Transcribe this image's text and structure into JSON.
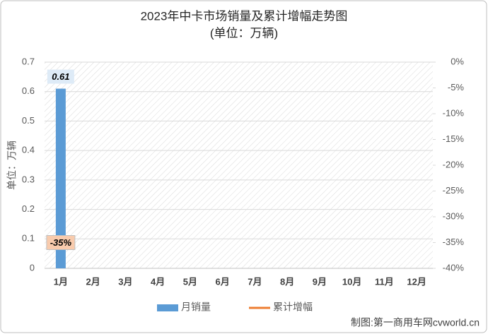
{
  "chart_data": {
    "type": "bar",
    "title": "2023年中卡市场销量及累计增幅走势图",
    "subtitle": "(单位：万辆)",
    "y_label": "单位：万辆",
    "source": "制图:第一商用车网cvworld.cn",
    "categories": [
      "1月",
      "2月",
      "3月",
      "4月",
      "5月",
      "6月",
      "7月",
      "8月",
      "9月",
      "10月",
      "11月",
      "12月"
    ],
    "series": [
      {
        "name": "月销量",
        "type": "bar",
        "color": "#5b9bd5",
        "values": [
          0.61,
          null,
          null,
          null,
          null,
          null,
          null,
          null,
          null,
          null,
          null,
          null
        ]
      },
      {
        "name": "累计增幅",
        "type": "line",
        "axis": "y2",
        "color": "#ed7d31",
        "values": [
          -35,
          null,
          null,
          null,
          null,
          null,
          null,
          null,
          null,
          null,
          null,
          null
        ],
        "value_labels": [
          "-35%",
          null,
          null,
          null,
          null,
          null,
          null,
          null,
          null,
          null,
          null,
          null
        ]
      }
    ],
    "ylim": [
      0,
      0.7
    ],
    "yticks": [
      0,
      0.1,
      0.2,
      0.3,
      0.4,
      0.5,
      0.6,
      0.7
    ],
    "y2lim": [
      -40,
      0
    ],
    "y2ticks": [
      {
        "value": 0,
        "label": "0%"
      },
      {
        "value": -5,
        "label": "-5%"
      },
      {
        "value": -10,
        "label": "-10%"
      },
      {
        "value": -15,
        "label": "-15%"
      },
      {
        "value": -20,
        "label": "-20%"
      },
      {
        "value": -25,
        "label": "-25%"
      },
      {
        "value": -30,
        "label": "-30%"
      },
      {
        "value": -35,
        "label": "-35%"
      },
      {
        "value": -40,
        "label": "-40%"
      }
    ],
    "grid": true
  }
}
